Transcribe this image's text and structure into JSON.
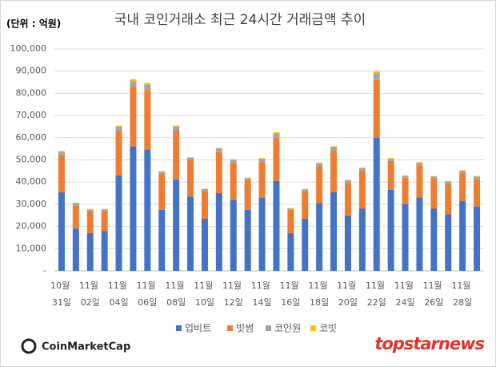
{
  "chart_data": {
    "type": "stacked_bar",
    "title": "국내 코인거래소 최근 24시간 거래금액 추이",
    "ylabel": "(단위 : 억원)",
    "categories": [
      "10월 31일",
      null,
      "11월 02일",
      null,
      "11월 04일",
      null,
      "11월 06일",
      null,
      "11월 08일",
      null,
      "11월 10일",
      null,
      "11월 12일",
      null,
      "11월 14일",
      null,
      "11월 16일",
      null,
      "11월 18일",
      null,
      "11월 20일",
      null,
      "11월 22일",
      null,
      "11월 24일",
      null,
      "11월 26일",
      null,
      "11월 28일",
      null
    ],
    "series": [
      {
        "name": "업비트",
        "color": "#4472c4",
        "values": [
          35400,
          19000,
          17000,
          18000,
          43000,
          56000,
          54500,
          27500,
          41000,
          33500,
          23500,
          35000,
          32000,
          27500,
          33000,
          40500,
          17000,
          23500,
          30500,
          35500,
          25000,
          28000,
          60000,
          36500,
          30000,
          33000,
          28000,
          25500,
          31500,
          29000
        ]
      },
      {
        "name": "빗썸",
        "color": "#ed7d31",
        "values": [
          16600,
          10500,
          10000,
          9000,
          20000,
          27000,
          27000,
          16000,
          22000,
          16500,
          12500,
          18500,
          16500,
          13500,
          16000,
          19500,
          10500,
          12500,
          16500,
          18500,
          14500,
          17000,
          26000,
          13000,
          12000,
          14500,
          13500,
          13500,
          12500,
          12000
        ]
      },
      {
        "name": "코인원",
        "color": "#a5a5a5",
        "values": [
          1700,
          1000,
          700,
          700,
          2000,
          2500,
          2500,
          1200,
          2000,
          1000,
          800,
          1600,
          1500,
          800,
          1500,
          2000,
          600,
          700,
          1500,
          1800,
          1200,
          1200,
          3000,
          1000,
          800,
          1200,
          1000,
          1200,
          1000,
          1500
        ]
      },
      {
        "name": "코빗",
        "color": "#ffc000",
        "values": [
          300,
          200,
          200,
          200,
          400,
          800,
          700,
          300,
          400,
          200,
          200,
          300,
          300,
          200,
          300,
          500,
          200,
          200,
          300,
          400,
          300,
          300,
          800,
          300,
          200,
          300,
          200,
          300,
          300,
          300
        ]
      }
    ],
    "ylim": [
      0,
      100000
    ],
    "yticks": [
      {
        "value": 0,
        "label": "-"
      },
      {
        "value": 10000,
        "label": "10,000"
      },
      {
        "value": 20000,
        "label": "20,000"
      },
      {
        "value": 30000,
        "label": "30,000"
      },
      {
        "value": 40000,
        "label": "40,000"
      },
      {
        "value": 50000,
        "label": "50,000"
      },
      {
        "value": 60000,
        "label": "60,000"
      },
      {
        "value": 70000,
        "label": "70,000"
      },
      {
        "value": 80000,
        "label": "80,000"
      },
      {
        "value": 90000,
        "label": "90,000"
      },
      {
        "value": 100000,
        "label": "100,000"
      }
    ],
    "grid": true,
    "legend": "bottom"
  },
  "logos": {
    "left": "CoinMarketCap",
    "right": "topstarnews"
  }
}
